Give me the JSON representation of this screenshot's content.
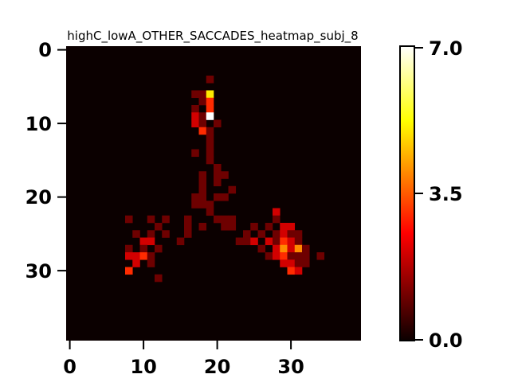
{
  "chart_data": {
    "type": "heatmap",
    "title": "highC_lowA_OTHER_SACCADES_heatmap_subj_8",
    "colormap": "hot",
    "grid_size": [
      40,
      40
    ],
    "vmin": 0.0,
    "vmax": 7.0,
    "x_ticks": [
      "0",
      "10",
      "20",
      "30"
    ],
    "y_ticks": [
      "0",
      "10",
      "20",
      "30"
    ],
    "colorbar_ticks": [
      "0.0",
      "3.5",
      "7.0"
    ],
    "cells": [
      [
        19,
        4,
        1
      ],
      [
        17,
        6,
        1
      ],
      [
        18,
        6,
        1
      ],
      [
        19,
        6,
        5
      ],
      [
        18,
        7,
        1
      ],
      [
        19,
        7,
        3
      ],
      [
        17,
        8,
        1
      ],
      [
        19,
        8,
        3
      ],
      [
        17,
        9,
        2
      ],
      [
        18,
        9,
        1
      ],
      [
        19,
        9,
        7
      ],
      [
        17,
        10,
        2
      ],
      [
        18,
        10,
        1
      ],
      [
        20,
        10,
        1
      ],
      [
        18,
        11,
        3
      ],
      [
        19,
        11,
        1
      ],
      [
        19,
        12,
        1
      ],
      [
        19,
        13,
        1
      ],
      [
        17,
        14,
        1
      ],
      [
        19,
        14,
        1
      ],
      [
        19,
        15,
        1
      ],
      [
        20,
        16,
        1
      ],
      [
        18,
        17,
        1
      ],
      [
        20,
        17,
        1
      ],
      [
        21,
        17,
        1
      ],
      [
        18,
        18,
        1
      ],
      [
        20,
        18,
        1
      ],
      [
        18,
        19,
        1
      ],
      [
        22,
        19,
        1
      ],
      [
        17,
        20,
        1
      ],
      [
        18,
        20,
        1
      ],
      [
        20,
        20,
        1
      ],
      [
        21,
        20,
        1
      ],
      [
        17,
        21,
        1
      ],
      [
        18,
        21,
        1
      ],
      [
        19,
        21,
        1
      ],
      [
        19,
        22,
        1
      ],
      [
        28,
        22,
        2
      ],
      [
        8,
        23,
        1
      ],
      [
        11,
        23,
        1
      ],
      [
        13,
        23,
        1
      ],
      [
        16,
        23,
        1
      ],
      [
        20,
        23,
        1
      ],
      [
        21,
        23,
        1
      ],
      [
        22,
        23,
        1
      ],
      [
        28,
        23,
        1
      ],
      [
        12,
        24,
        1
      ],
      [
        16,
        24,
        1
      ],
      [
        18,
        24,
        1
      ],
      [
        21,
        24,
        1
      ],
      [
        22,
        24,
        1
      ],
      [
        25,
        24,
        1
      ],
      [
        27,
        24,
        1
      ],
      [
        29,
        24,
        2
      ],
      [
        30,
        24,
        2
      ],
      [
        9,
        25,
        1
      ],
      [
        11,
        25,
        1
      ],
      [
        13,
        25,
        1
      ],
      [
        16,
        25,
        1
      ],
      [
        24,
        25,
        1
      ],
      [
        26,
        25,
        1
      ],
      [
        28,
        25,
        1
      ],
      [
        29,
        25,
        2
      ],
      [
        30,
        25,
        1
      ],
      [
        31,
        25,
        1
      ],
      [
        10,
        26,
        2
      ],
      [
        11,
        26,
        2
      ],
      [
        15,
        26,
        1
      ],
      [
        23,
        26,
        1
      ],
      [
        24,
        26,
        1
      ],
      [
        25,
        26,
        2
      ],
      [
        27,
        26,
        2
      ],
      [
        28,
        26,
        1
      ],
      [
        29,
        26,
        3
      ],
      [
        30,
        26,
        2
      ],
      [
        31,
        26,
        1
      ],
      [
        8,
        27,
        1
      ],
      [
        10,
        27,
        1
      ],
      [
        12,
        27,
        1
      ],
      [
        26,
        27,
        1
      ],
      [
        28,
        27,
        2
      ],
      [
        29,
        27,
        4
      ],
      [
        30,
        27,
        2
      ],
      [
        31,
        27,
        4
      ],
      [
        32,
        27,
        1
      ],
      [
        8,
        28,
        2
      ],
      [
        9,
        28,
        2
      ],
      [
        10,
        28,
        3
      ],
      [
        11,
        28,
        1
      ],
      [
        27,
        28,
        1
      ],
      [
        28,
        28,
        2
      ],
      [
        29,
        28,
        3
      ],
      [
        30,
        28,
        1
      ],
      [
        31,
        28,
        1
      ],
      [
        32,
        28,
        1
      ],
      [
        34,
        28,
        1
      ],
      [
        9,
        29,
        2
      ],
      [
        11,
        29,
        1
      ],
      [
        29,
        29,
        2
      ],
      [
        30,
        29,
        2
      ],
      [
        31,
        29,
        1
      ],
      [
        32,
        29,
        1
      ],
      [
        8,
        30,
        3
      ],
      [
        30,
        30,
        3
      ],
      [
        31,
        30,
        2
      ],
      [
        12,
        31,
        1
      ]
    ]
  }
}
